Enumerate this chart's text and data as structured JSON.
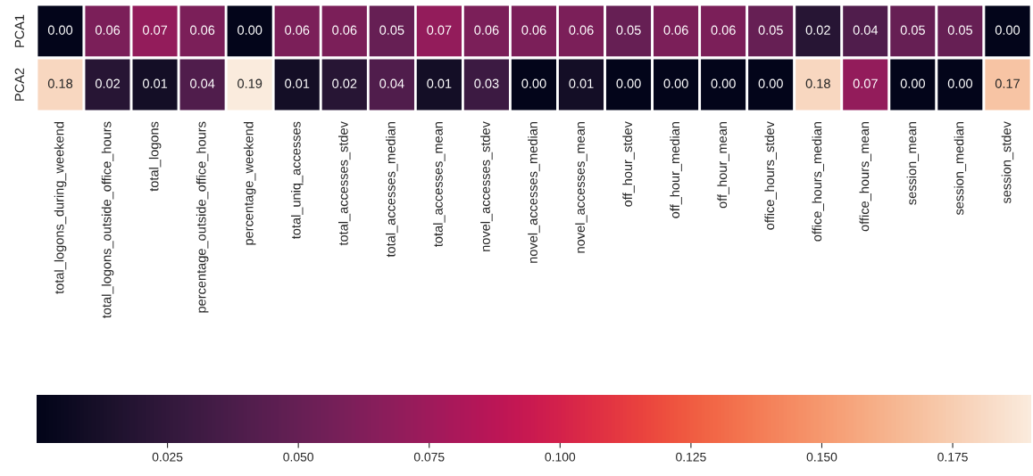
{
  "chart_data": {
    "type": "heatmap",
    "categories": [
      "total_logons_during_weekend",
      "total_logons_outside_office_hours",
      "total_logons",
      "percentage_outside_office_hours",
      "percentage_weekend",
      "total_uniq_accesses",
      "total_accesses_stdev",
      "total_accesses_median",
      "total_accesses_mean",
      "novel_accesses_stdev",
      "novel_accesses_median",
      "novel_accesses_mean",
      "off_hour_stdev",
      "off_hour_median",
      "off_hour_mean",
      "office_hours_stdev",
      "office_hours_median",
      "office_hours_mean",
      "session_mean",
      "session_median",
      "session_stdev"
    ],
    "y_categories": [
      "PCA1",
      "PCA2"
    ],
    "cells": [
      [
        0.0,
        0.06,
        0.07,
        0.06,
        0.0,
        0.06,
        0.06,
        0.05,
        0.07,
        0.06,
        0.06,
        0.06,
        0.05,
        0.06,
        0.06,
        0.05,
        0.02,
        0.04,
        0.05,
        0.05,
        0.0
      ],
      [
        0.18,
        0.02,
        0.01,
        0.04,
        0.19,
        0.01,
        0.02,
        0.04,
        0.01,
        0.03,
        0.0,
        0.01,
        0.0,
        0.0,
        0.0,
        0.0,
        0.18,
        0.07,
        0.0,
        0.0,
        0.17
      ]
    ],
    "cell_labels": [
      [
        "0.00",
        "0.06",
        "0.07",
        "0.06",
        "0.00",
        "0.06",
        "0.06",
        "0.05",
        "0.07",
        "0.06",
        "0.06",
        "0.06",
        "0.05",
        "0.06",
        "0.06",
        "0.05",
        "0.02",
        "0.04",
        "0.05",
        "0.05",
        "0.00"
      ],
      [
        "0.18",
        "0.02",
        "0.01",
        "0.04",
        "0.19",
        "0.01",
        "0.02",
        "0.04",
        "0.01",
        "0.03",
        "0.00",
        "0.01",
        "0.00",
        "0.00",
        "0.00",
        "0.00",
        "0.18",
        "0.07",
        "0.00",
        "0.00",
        "0.17"
      ]
    ],
    "clim": [
      0,
      0.19
    ],
    "cticks": [
      0.025,
      {
        "value": 0.05,
        "label": "0.050"
      },
      0.075,
      {
        "value": 0.1,
        "label": "0.100"
      },
      0.125,
      {
        "value": 0.15,
        "label": "0.150"
      },
      0.175
    ]
  }
}
